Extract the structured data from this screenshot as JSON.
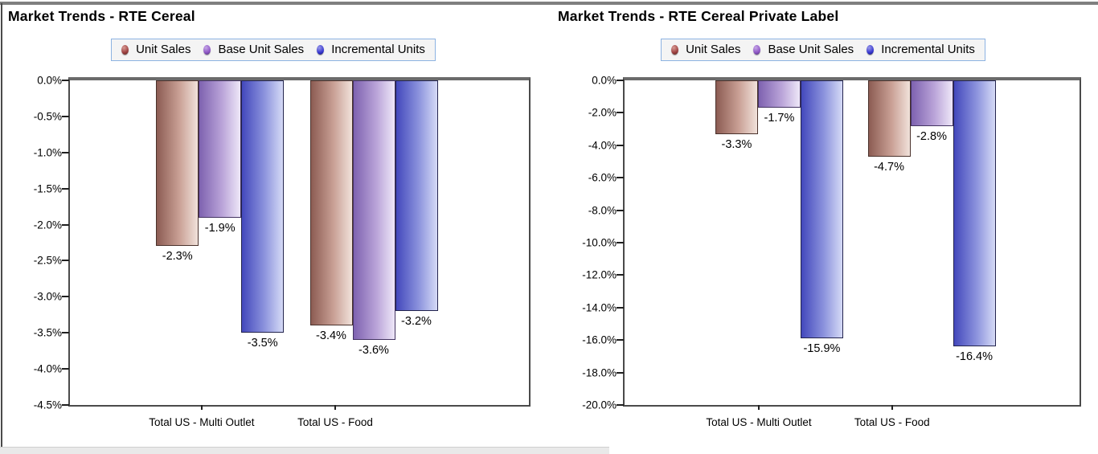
{
  "frame": {
    "background": "#ffffff",
    "top_rule_color": "#7f7f7f",
    "left_edge_color": "#4a4a4a",
    "bottom_strip_color": "#e9e9e9"
  },
  "colors": {
    "legend_bg": "#f4f4f4",
    "legend_border": "#8db3e2",
    "axis_line": "#4a4a4a",
    "zero_line": "#6b6b6b",
    "text": "#000000",
    "series": [
      {
        "name": "Unit Sales",
        "marker": "#993b3b",
        "marker_light": "#d99a94",
        "grad_dark": "#8c5c53",
        "grad_mid": "#c9a095",
        "grad_light": "#f1e2db",
        "border": "#4a322c"
      },
      {
        "name": "Base Unit Sales",
        "marker": "#8a52c2",
        "marker_light": "#c6a6e8",
        "grad_dark": "#7e62b0",
        "grad_mid": "#b9a3d8",
        "grad_light": "#eee7f8",
        "border": "#433361"
      },
      {
        "name": "Incremental Units",
        "marker": "#3232cf",
        "marker_light": "#9a9ae8",
        "grad_dark": "#4348bc",
        "grad_mid": "#8c93dd",
        "grad_light": "#d5daf6",
        "border": "#23244e"
      }
    ]
  },
  "chart_data": [
    {
      "type": "bar",
      "title": "Market Trends - RTE Cereal",
      "categories": [
        "Total US - Multi Outlet",
        "Total US - Food"
      ],
      "series": [
        {
          "name": "Unit Sales",
          "values": [
            -2.3,
            -3.4
          ]
        },
        {
          "name": "Base Unit Sales",
          "values": [
            -1.9,
            -3.6
          ]
        },
        {
          "name": "Incremental Units",
          "values": [
            -3.5,
            -3.2
          ]
        }
      ],
      "data_labels": [
        [
          "-2.3%",
          "-1.9%",
          "-3.5%"
        ],
        [
          "-3.4%",
          "-3.6%",
          "-3.2%"
        ]
      ],
      "xlabel": "",
      "ylabel": "",
      "ylim": [
        0,
        -4.5
      ],
      "ytick_step": -0.5,
      "ytick_labels": [
        "0.0%",
        "-0.5%",
        "-1.0%",
        "-1.5%",
        "-2.0%",
        "-2.5%",
        "-3.0%",
        "-3.5%",
        "-4.0%",
        "-4.5%"
      ],
      "legend_position": "top-center",
      "grid": false
    },
    {
      "type": "bar",
      "title": "Market Trends - RTE Cereal Private Label",
      "categories": [
        "Total US - Multi Outlet",
        "Total US - Food"
      ],
      "series": [
        {
          "name": "Unit Sales",
          "values": [
            -3.3,
            -4.7
          ]
        },
        {
          "name": "Base Unit Sales",
          "values": [
            -1.7,
            -2.8
          ]
        },
        {
          "name": "Incremental Units",
          "values": [
            -15.9,
            -16.4
          ]
        }
      ],
      "data_labels": [
        [
          "-3.3%",
          "-1.7%",
          "-15.9%"
        ],
        [
          "-4.7%",
          "-2.8%",
          "-16.4%"
        ]
      ],
      "xlabel": "",
      "ylabel": "",
      "ylim": [
        0,
        -20.0
      ],
      "ytick_step": -2.0,
      "ytick_labels": [
        "0.0%",
        "-2.0%",
        "-4.0%",
        "-6.0%",
        "-8.0%",
        "-10.0%",
        "-12.0%",
        "-14.0%",
        "-16.0%",
        "-18.0%",
        "-20.0%"
      ],
      "legend_position": "top-center",
      "grid": false
    }
  ]
}
